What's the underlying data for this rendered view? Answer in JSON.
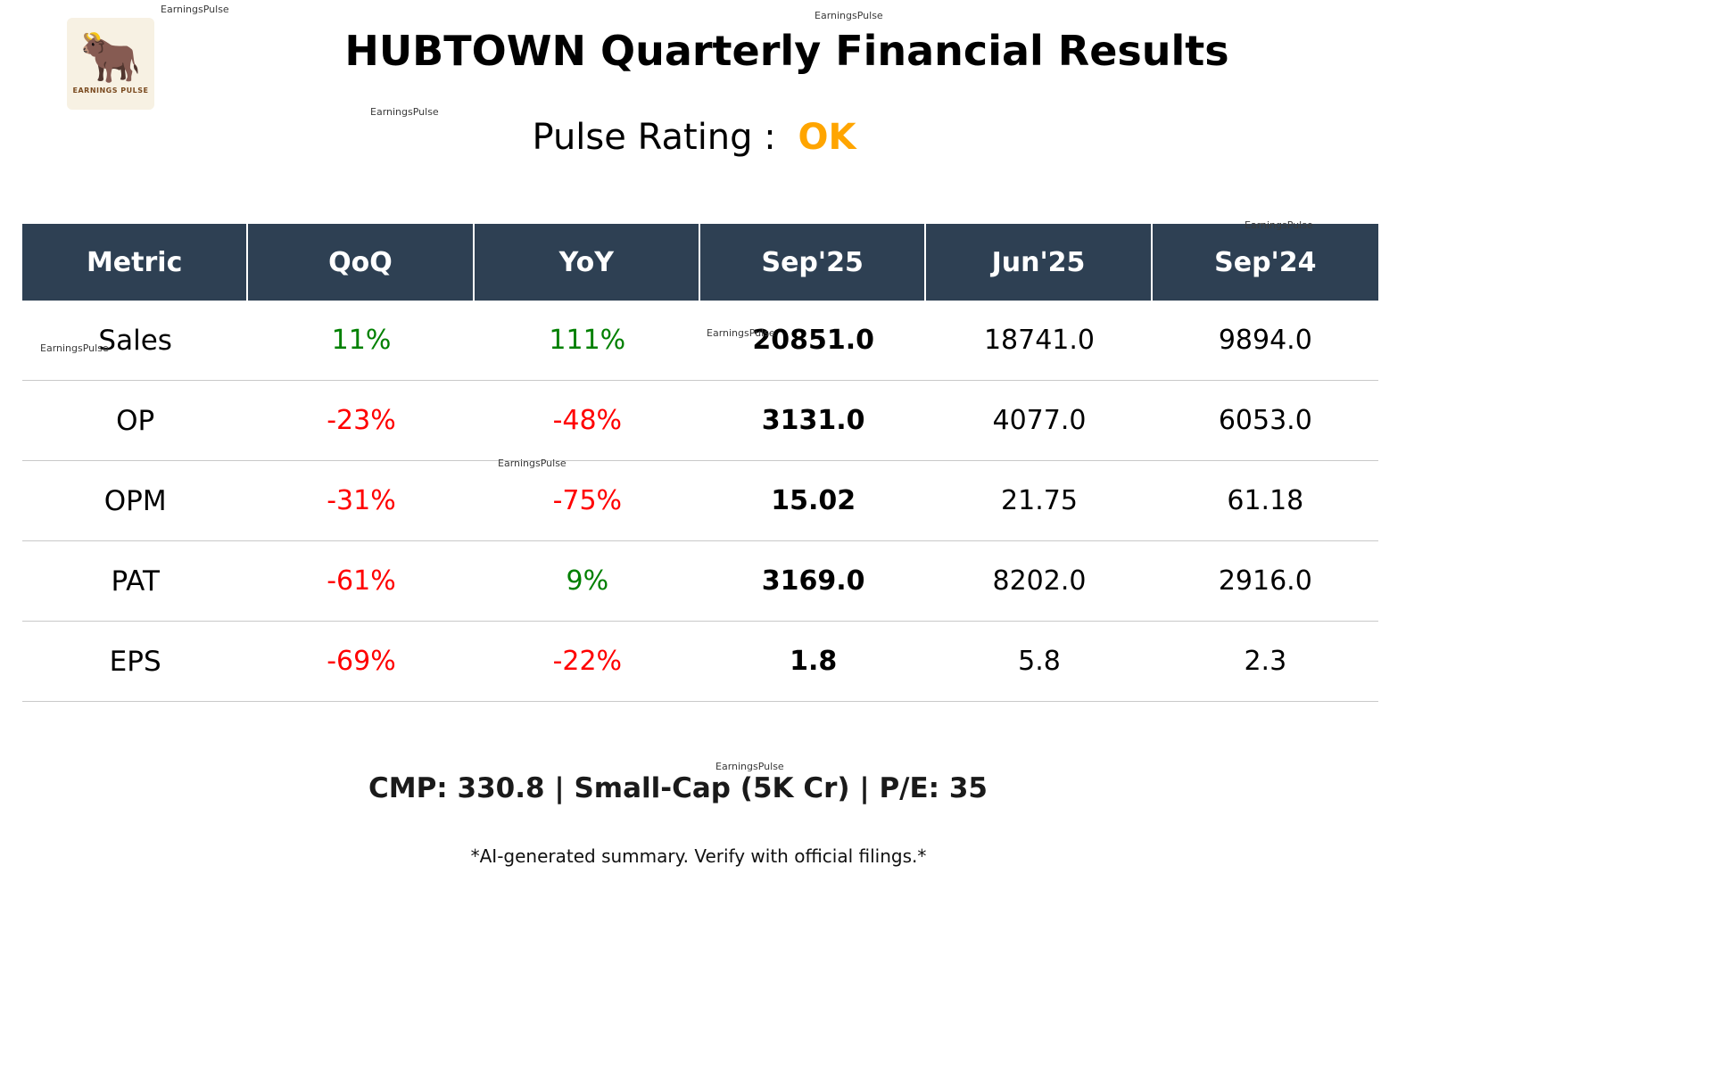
{
  "watermark": "EarningsPulse",
  "logo": {
    "bull_icon": "🐂",
    "caption": "EARNINGS PULSE"
  },
  "header": {
    "title": "HUBTOWN Quarterly Financial Results",
    "rating_label": "Pulse Rating :",
    "rating_value": "OK"
  },
  "colors": {
    "header_bg": "#2E4053",
    "positive": "#008000",
    "negative": "#FF0000",
    "rating": "#FFA500"
  },
  "chart_data": {
    "type": "table",
    "title": "HUBTOWN Quarterly Financial Results",
    "columns": [
      "Metric",
      "QoQ",
      "YoY",
      "Sep'25",
      "Jun'25",
      "Sep'24"
    ],
    "rows": [
      {
        "metric": "Sales",
        "cells": [
          {
            "text": "11%",
            "color": "positive"
          },
          {
            "text": "111%",
            "color": "positive"
          },
          {
            "text": "20851.0",
            "bold": true
          },
          {
            "text": "18741.0"
          },
          {
            "text": "9894.0"
          }
        ]
      },
      {
        "metric": "OP",
        "cells": [
          {
            "text": "-23%",
            "color": "negative"
          },
          {
            "text": "-48%",
            "color": "negative"
          },
          {
            "text": "3131.0",
            "bold": true
          },
          {
            "text": "4077.0"
          },
          {
            "text": "6053.0"
          }
        ]
      },
      {
        "metric": "OPM",
        "cells": [
          {
            "text": "-31%",
            "color": "negative"
          },
          {
            "text": "-75%",
            "color": "negative"
          },
          {
            "text": "15.02",
            "bold": true
          },
          {
            "text": "21.75"
          },
          {
            "text": "61.18"
          }
        ]
      },
      {
        "metric": "PAT",
        "cells": [
          {
            "text": "-61%",
            "color": "negative"
          },
          {
            "text": "9%",
            "color": "positive"
          },
          {
            "text": "3169.0",
            "bold": true
          },
          {
            "text": "8202.0"
          },
          {
            "text": "2916.0"
          }
        ]
      },
      {
        "metric": "EPS",
        "cells": [
          {
            "text": "-69%",
            "color": "negative"
          },
          {
            "text": "-22%",
            "color": "negative"
          },
          {
            "text": "1.8",
            "bold": true
          },
          {
            "text": "5.8"
          },
          {
            "text": "2.3"
          }
        ]
      }
    ]
  },
  "footer": {
    "summary": "CMP: 330.8 | Small-Cap (5K Cr) | P/E: 35",
    "disclaimer": "*AI-generated summary. Verify with official filings.*"
  }
}
